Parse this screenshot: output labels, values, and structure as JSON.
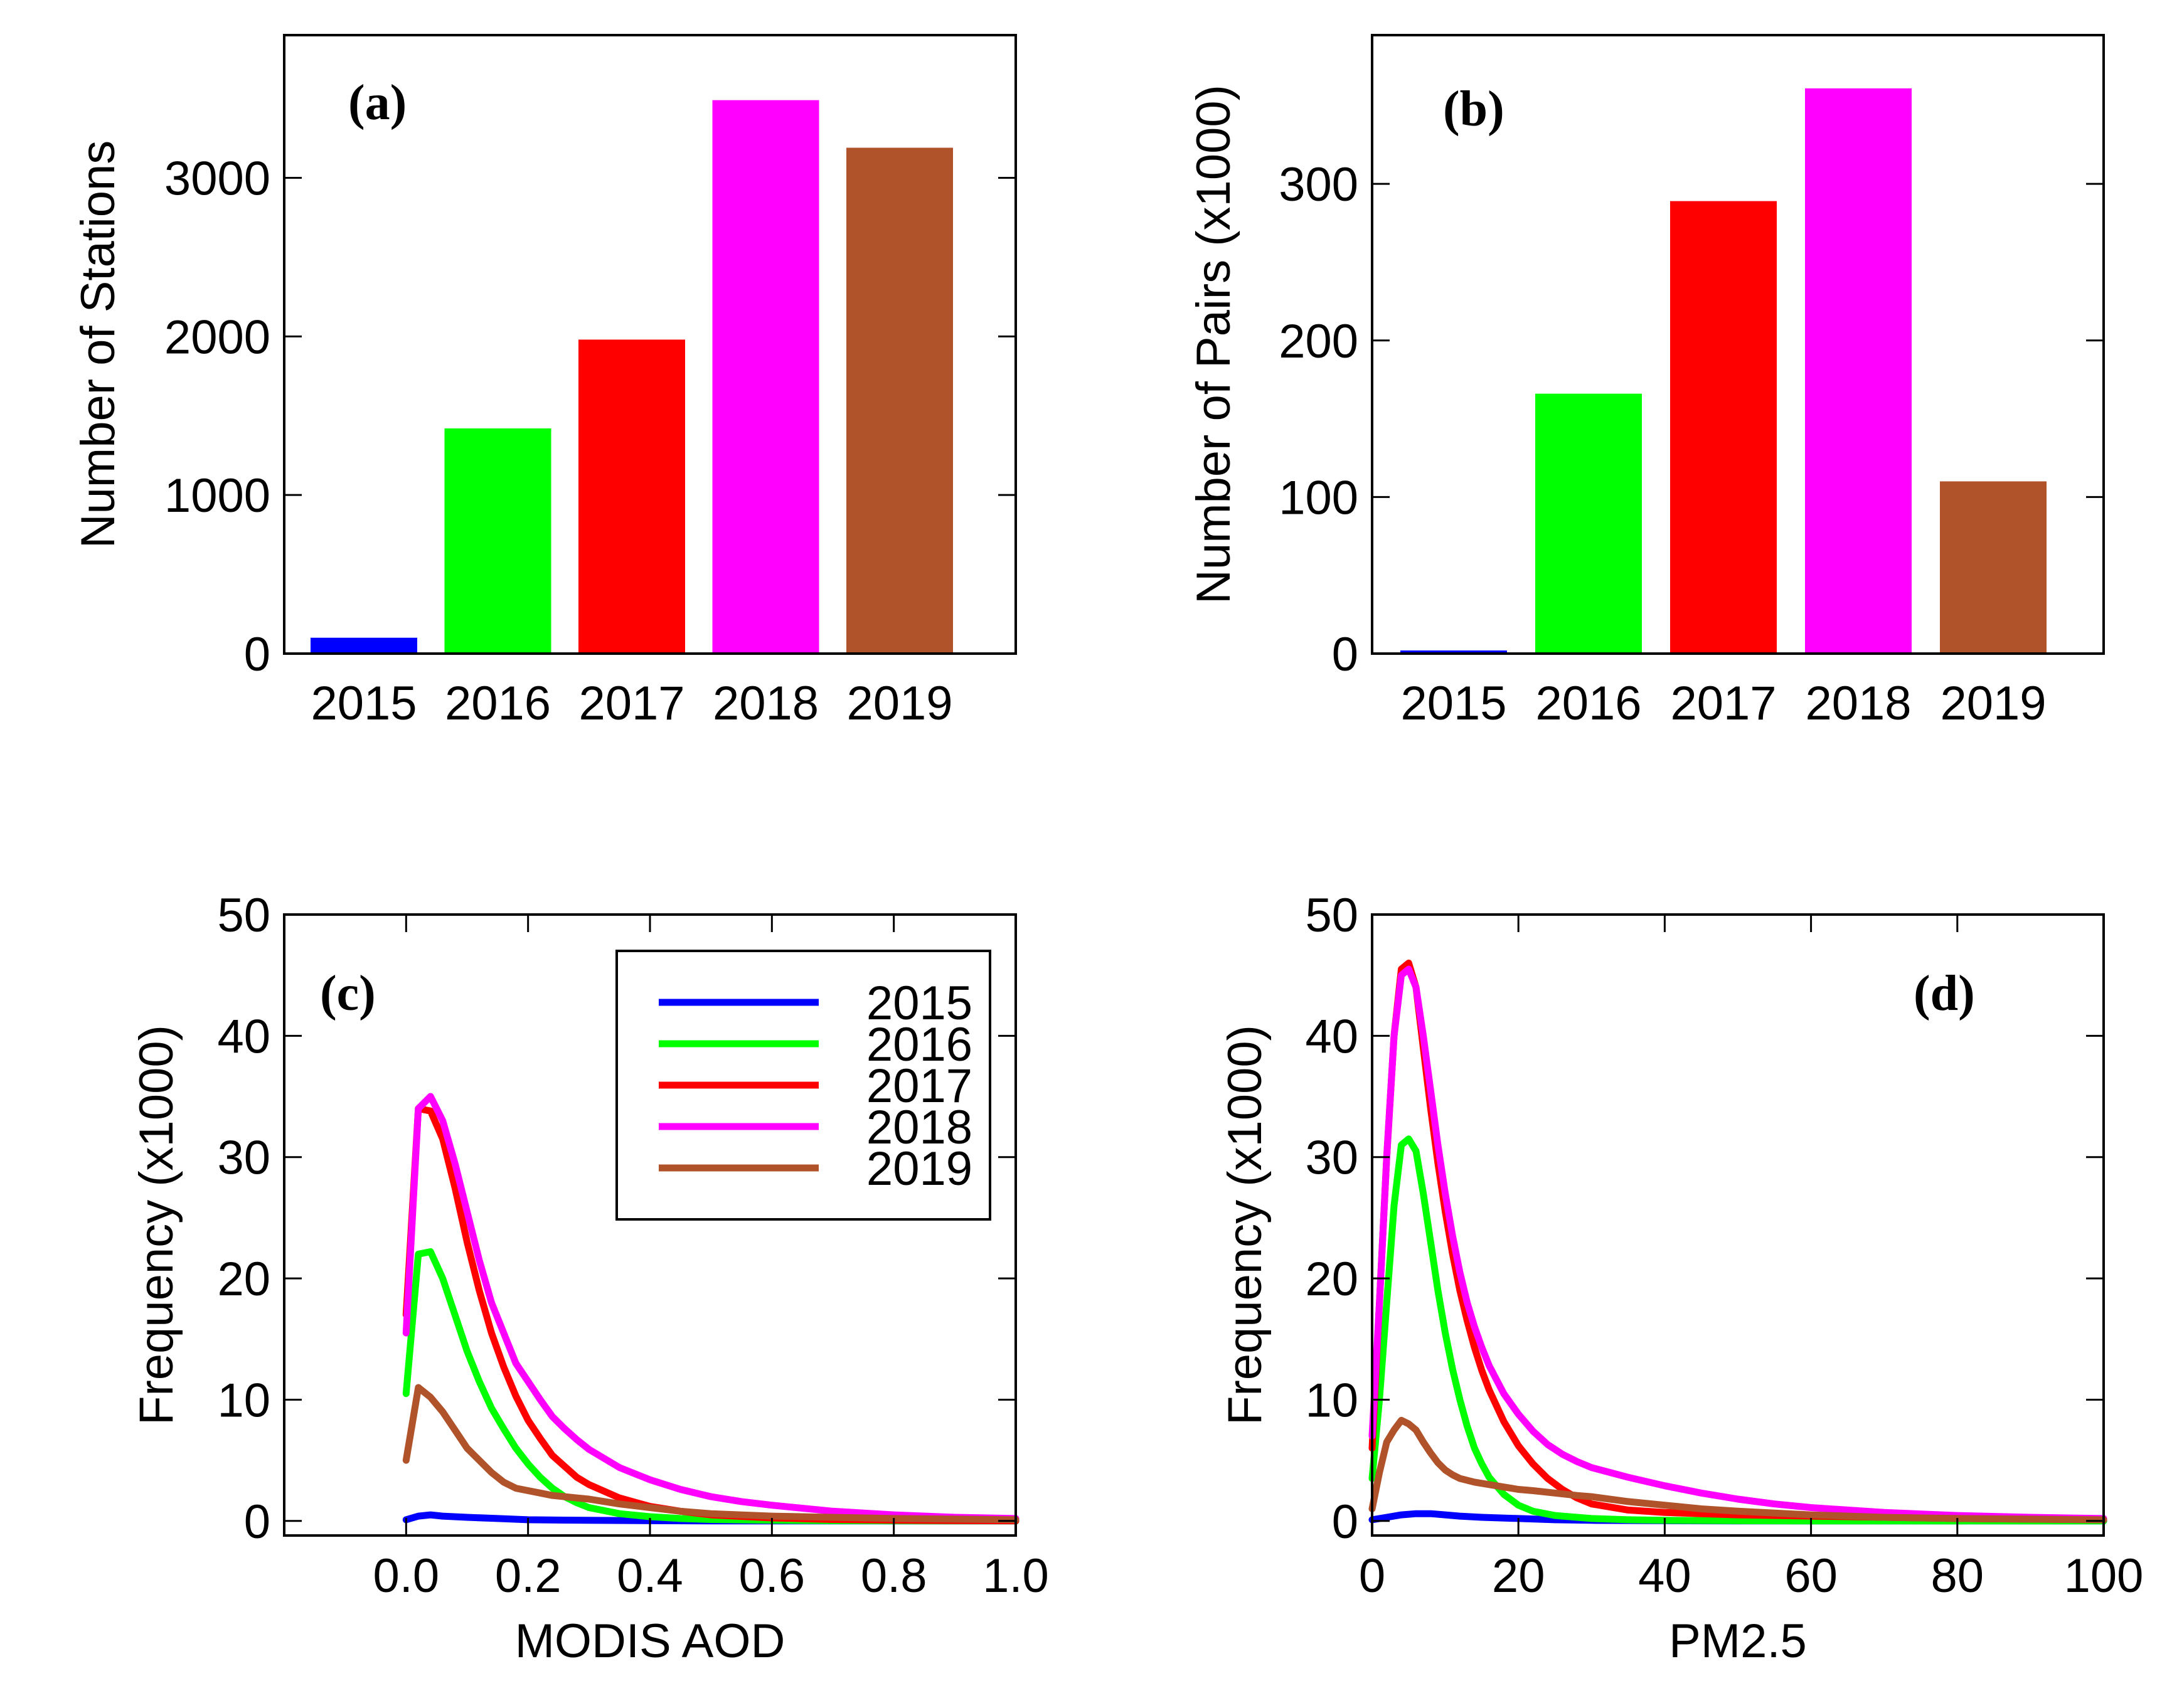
{
  "chart_data": [
    {
      "id": "a",
      "type": "bar",
      "panel_label": "(a)",
      "title": "",
      "xlabel": "",
      "ylabel": "Number of Stations",
      "categories": [
        "2015",
        "2016",
        "2017",
        "2018",
        "2019"
      ],
      "values": [
        100,
        1420,
        1980,
        3490,
        3190
      ],
      "colors": [
        "#0000ff",
        "#00ff00",
        "#ff0000",
        "#ff00ff",
        "#b0522a"
      ],
      "ylim": [
        0,
        3900
      ],
      "yticks": [
        0,
        1000,
        2000,
        3000
      ],
      "ytick_labels": [
        "0",
        "1000",
        "2000",
        "3000"
      ]
    },
    {
      "id": "b",
      "type": "bar",
      "panel_label": "(b)",
      "title": "",
      "xlabel": "",
      "ylabel": "Number of Pairs (x1000)",
      "categories": [
        "2015",
        "2016",
        "2017",
        "2018",
        "2019"
      ],
      "values": [
        2,
        166,
        289,
        361,
        110
      ],
      "colors": [
        "#0000ff",
        "#00ff00",
        "#ff0000",
        "#ff00ff",
        "#b0522a"
      ],
      "ylim": [
        0,
        395
      ],
      "yticks": [
        0,
        100,
        200,
        300
      ],
      "ytick_labels": [
        "0",
        "100",
        "200",
        "300"
      ]
    },
    {
      "id": "c",
      "type": "line",
      "panel_label": "(c)",
      "title": "",
      "xlabel": "MODIS AOD",
      "ylabel": "Frequency (x1000)",
      "xlim": [
        -0.2,
        1.0
      ],
      "ylim": [
        -1.2,
        50
      ],
      "xticks": [
        0.0,
        0.2,
        0.4,
        0.6,
        0.8,
        1.0
      ],
      "xtick_labels": [
        "0.0",
        "0.2",
        "0.4",
        "0.6",
        "0.8",
        "1.0"
      ],
      "yticks": [
        0,
        10,
        20,
        30,
        40,
        50
      ],
      "ytick_labels": [
        "0",
        "10",
        "20",
        "30",
        "40",
        "50"
      ],
      "legend": {
        "position": "top-right",
        "entries": [
          "2015",
          "2016",
          "2017",
          "2018",
          "2019"
        ]
      },
      "series": [
        {
          "name": "2015",
          "color": "#0000ff",
          "x": [
            0,
            0.02,
            0.04,
            0.06,
            0.1,
            0.15,
            0.2,
            0.3,
            0.4,
            0.5,
            0.6,
            0.8,
            1.0
          ],
          "y": [
            0.1,
            0.4,
            0.5,
            0.4,
            0.3,
            0.2,
            0.1,
            0.05,
            0.02,
            0,
            0,
            0,
            0
          ]
        },
        {
          "name": "2016",
          "color": "#00ff00",
          "x": [
            0,
            0.02,
            0.04,
            0.06,
            0.08,
            0.1,
            0.12,
            0.14,
            0.16,
            0.18,
            0.2,
            0.22,
            0.24,
            0.26,
            0.28,
            0.3,
            0.35,
            0.4,
            0.45,
            0.5,
            0.6,
            0.7,
            0.8,
            0.9,
            1.0
          ],
          "y": [
            10.5,
            22,
            22.2,
            20,
            17,
            14,
            11.5,
            9.3,
            7.6,
            6,
            4.7,
            3.6,
            2.7,
            2,
            1.5,
            1.1,
            0.6,
            0.35,
            0.2,
            0.12,
            0.05,
            0.02,
            0.01,
            0,
            0
          ]
        },
        {
          "name": "2017",
          "color": "#ff0000",
          "x": [
            0,
            0.02,
            0.04,
            0.06,
            0.08,
            0.1,
            0.12,
            0.14,
            0.16,
            0.18,
            0.2,
            0.22,
            0.24,
            0.26,
            0.28,
            0.3,
            0.35,
            0.4,
            0.45,
            0.5,
            0.6,
            0.7,
            0.8,
            0.9,
            1.0
          ],
          "y": [
            17,
            34,
            33.8,
            31.5,
            27.5,
            23,
            19,
            15.5,
            12.7,
            10.3,
            8.3,
            6.8,
            5.4,
            4.5,
            3.6,
            3,
            1.9,
            1.2,
            0.8,
            0.5,
            0.25,
            0.12,
            0.06,
            0.03,
            0.01
          ]
        },
        {
          "name": "2018",
          "color": "#ff00ff",
          "x": [
            0,
            0.02,
            0.04,
            0.06,
            0.08,
            0.1,
            0.12,
            0.14,
            0.16,
            0.18,
            0.2,
            0.22,
            0.24,
            0.26,
            0.28,
            0.3,
            0.35,
            0.4,
            0.45,
            0.5,
            0.55,
            0.6,
            0.7,
            0.8,
            0.9,
            1.0
          ],
          "y": [
            15.5,
            34,
            35,
            33,
            29.5,
            25.5,
            21.5,
            18,
            15.5,
            13,
            11.5,
            10,
            8.6,
            7.6,
            6.7,
            5.9,
            4.4,
            3.4,
            2.6,
            2,
            1.6,
            1.3,
            0.8,
            0.5,
            0.3,
            0.2
          ]
        },
        {
          "name": "2019",
          "color": "#b0522a",
          "x": [
            0,
            0.02,
            0.04,
            0.06,
            0.08,
            0.1,
            0.12,
            0.14,
            0.16,
            0.18,
            0.2,
            0.22,
            0.24,
            0.26,
            0.28,
            0.3,
            0.35,
            0.4,
            0.45,
            0.5,
            0.6,
            0.7,
            0.8,
            0.9,
            1.0
          ],
          "y": [
            5,
            11,
            10.2,
            9,
            7.5,
            6,
            5,
            4,
            3.2,
            2.7,
            2.5,
            2.3,
            2.1,
            2,
            1.9,
            1.8,
            1.4,
            1.1,
            0.8,
            0.6,
            0.4,
            0.3,
            0.2,
            0.15,
            0.1
          ]
        }
      ]
    },
    {
      "id": "d",
      "type": "line",
      "panel_label": "(d)",
      "title": "",
      "xlabel": "PM2.5",
      "ylabel": "Frequency (x1000)",
      "xlim": [
        0,
        100
      ],
      "ylim": [
        -1.2,
        50
      ],
      "xticks": [
        0,
        20,
        40,
        60,
        80,
        100
      ],
      "xtick_labels": [
        "0",
        "20",
        "40",
        "60",
        "80",
        "100"
      ],
      "yticks": [
        0,
        10,
        20,
        30,
        40,
        50
      ],
      "ytick_labels": [
        "0",
        "10",
        "20",
        "30",
        "40",
        "50"
      ],
      "series": [
        {
          "name": "2015",
          "color": "#0000ff",
          "x": [
            0,
            2,
            4,
            6,
            8,
            10,
            12,
            15,
            20,
            25,
            30,
            40,
            50,
            60,
            80,
            100
          ],
          "y": [
            0.1,
            0.3,
            0.5,
            0.6,
            0.6,
            0.5,
            0.4,
            0.3,
            0.2,
            0.1,
            0.05,
            0.02,
            0,
            0,
            0,
            0
          ]
        },
        {
          "name": "2016",
          "color": "#00ff00",
          "x": [
            0,
            1,
            2,
            3,
            4,
            5,
            6,
            7,
            8,
            9,
            10,
            11,
            12,
            13,
            14,
            15,
            16,
            18,
            20,
            22,
            25,
            30,
            35,
            40,
            50,
            60,
            80,
            100
          ],
          "y": [
            3.5,
            10,
            18,
            26,
            31,
            31.5,
            30.5,
            27,
            23,
            19,
            15.5,
            12.5,
            10,
            7.8,
            6,
            4.7,
            3.6,
            2.2,
            1.3,
            0.8,
            0.45,
            0.2,
            0.1,
            0.05,
            0.02,
            0,
            0,
            0
          ]
        },
        {
          "name": "2017",
          "color": "#ff0000",
          "x": [
            0,
            1,
            2,
            3,
            4,
            5,
            6,
            7,
            8,
            9,
            10,
            11,
            12,
            13,
            14,
            15,
            16,
            18,
            20,
            22,
            24,
            26,
            28,
            30,
            35,
            40,
            45,
            50,
            60,
            70,
            80,
            90,
            100
          ],
          "y": [
            6,
            18,
            30,
            40,
            45.5,
            46,
            44,
            39,
            34,
            29.5,
            25.5,
            22,
            19,
            16.5,
            14.3,
            12.4,
            10.8,
            8.2,
            6.2,
            4.7,
            3.5,
            2.6,
            1.9,
            1.4,
            0.9,
            0.7,
            0.6,
            0.5,
            0.4,
            0.3,
            0.2,
            0.15,
            0.1
          ]
        },
        {
          "name": "2018",
          "color": "#ff00ff",
          "x": [
            0,
            1,
            2,
            3,
            4,
            5,
            6,
            7,
            8,
            9,
            10,
            11,
            12,
            13,
            14,
            15,
            16,
            18,
            20,
            22,
            24,
            26,
            28,
            30,
            35,
            40,
            45,
            50,
            55,
            60,
            70,
            80,
            90,
            100
          ],
          "y": [
            7,
            18,
            30,
            40,
            45,
            45.5,
            44,
            40,
            35.5,
            31,
            27,
            23.5,
            20.5,
            18,
            16,
            14.3,
            12.8,
            10.5,
            8.8,
            7.4,
            6.3,
            5.5,
            4.9,
            4.4,
            3.6,
            2.9,
            2.3,
            1.8,
            1.4,
            1.1,
            0.7,
            0.45,
            0.3,
            0.2
          ]
        },
        {
          "name": "2019",
          "color": "#b0522a",
          "x": [
            0,
            1,
            2,
            3,
            4,
            5,
            6,
            7,
            8,
            9,
            10,
            11,
            12,
            14,
            16,
            18,
            20,
            22,
            25,
            28,
            30,
            35,
            40,
            45,
            50,
            60,
            70,
            80,
            90,
            100
          ],
          "y": [
            1,
            4,
            6.5,
            7.5,
            8.3,
            8,
            7.5,
            6.5,
            5.6,
            4.8,
            4.2,
            3.8,
            3.5,
            3.2,
            3,
            2.8,
            2.6,
            2.5,
            2.3,
            2.1,
            2,
            1.6,
            1.3,
            1,
            0.8,
            0.5,
            0.3,
            0.2,
            0.15,
            0.1
          ]
        }
      ]
    }
  ]
}
